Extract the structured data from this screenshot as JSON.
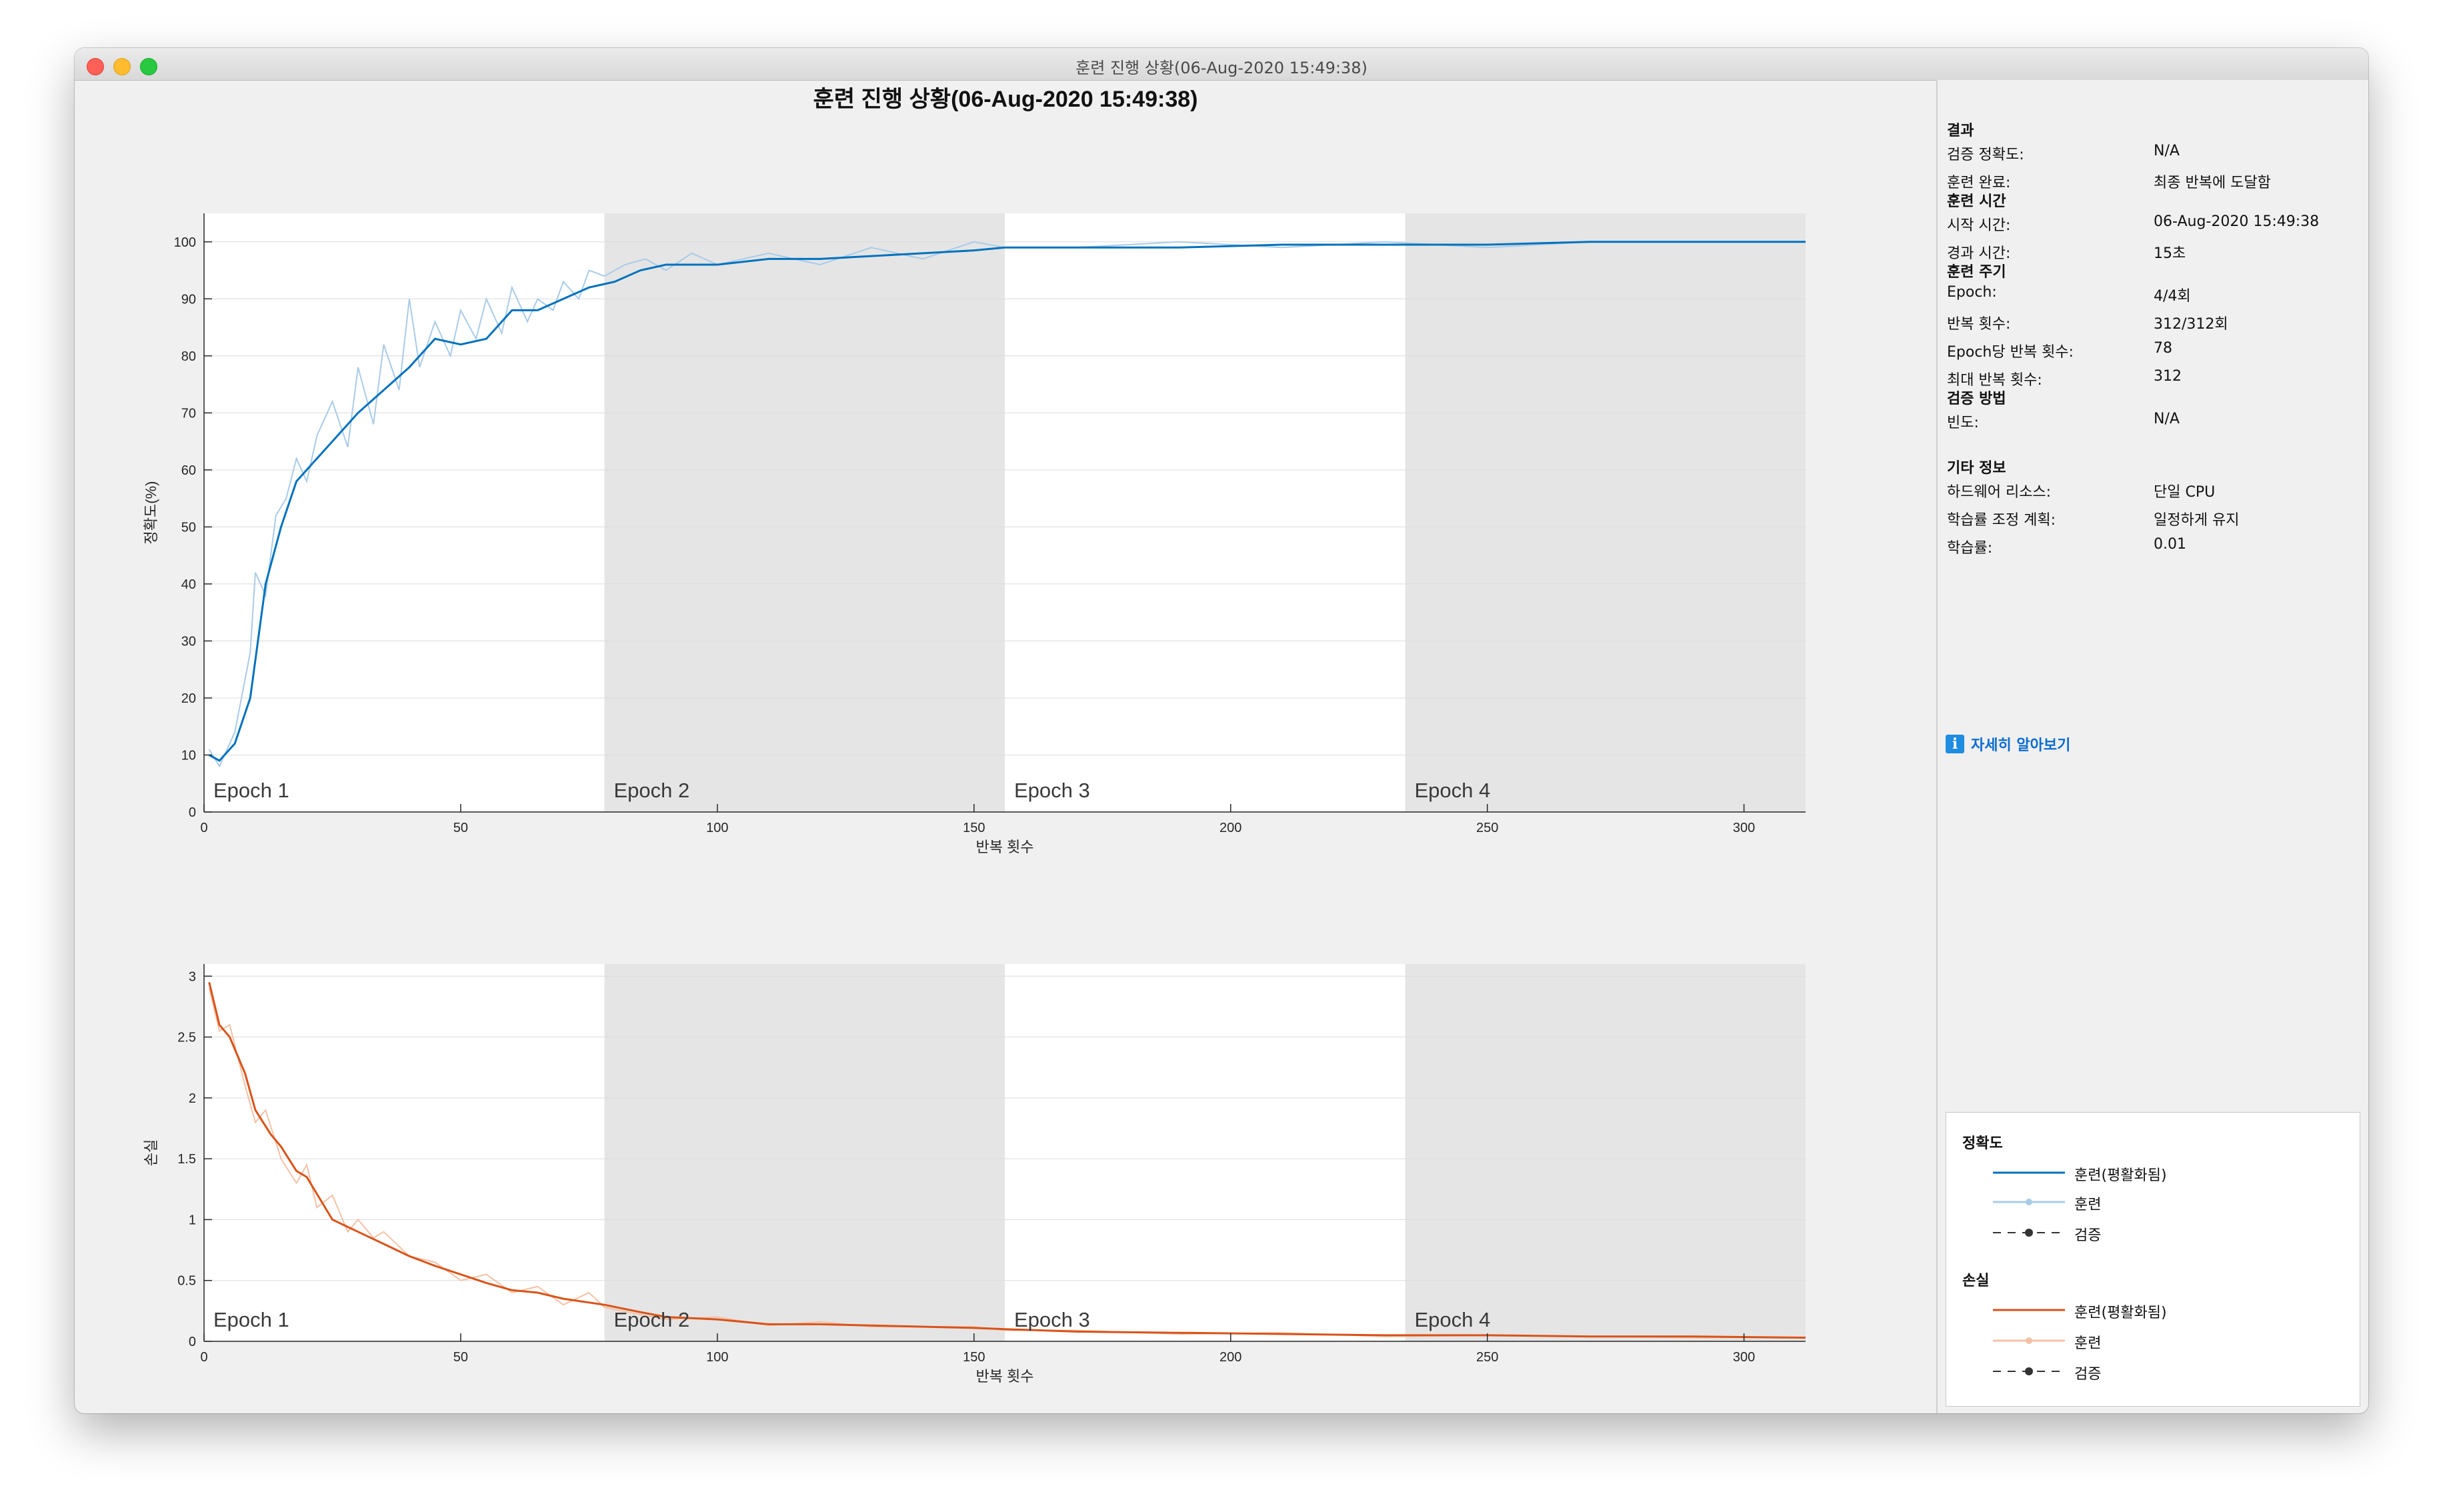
{
  "window": {
    "title": "훈련 진행 상황(06-Aug-2020 15:49:38)"
  },
  "figure": {
    "title": "훈련 진행 상황(06-Aug-2020 15:49:38)"
  },
  "colors": {
    "accuracy_smoothed": "#0072bd",
    "accuracy_raw": "#a9cbe8",
    "loss_smoothed": "#d95319",
    "loss_raw": "#f4c1a6",
    "epoch_shade": "#e5e5e5"
  },
  "epochs": [
    "Epoch 1",
    "Epoch 2",
    "Epoch 3",
    "Epoch 4"
  ],
  "chart_data": [
    {
      "type": "line",
      "ylabel": "정확도(%)",
      "xlabel": "반복 횟수",
      "xlim": [
        0,
        312
      ],
      "ylim": [
        0,
        105
      ],
      "xticks": [
        0,
        50,
        100,
        150,
        200,
        250,
        300
      ],
      "yticks": [
        0,
        10,
        20,
        30,
        40,
        50,
        60,
        70,
        80,
        90,
        100
      ],
      "epoch_boundaries": [
        0,
        78,
        156,
        234,
        312
      ],
      "grid": true,
      "series": [
        {
          "name": "훈련(평활화됨)",
          "x": [
            1,
            3,
            6,
            9,
            12,
            15,
            18,
            21,
            25,
            30,
            35,
            40,
            45,
            50,
            55,
            60,
            65,
            70,
            75,
            80,
            85,
            90,
            100,
            110,
            120,
            130,
            140,
            150,
            156,
            170,
            190,
            210,
            230,
            250,
            270,
            290,
            312
          ],
          "y": [
            10,
            9,
            12,
            20,
            40,
            50,
            58,
            61,
            65,
            70,
            74,
            78,
            83,
            82,
            83,
            88,
            88,
            90,
            92,
            93,
            95,
            96,
            96,
            97,
            97,
            97.5,
            98,
            98.5,
            99,
            99,
            99,
            99.5,
            99.5,
            99.5,
            100,
            100,
            100
          ]
        },
        {
          "name": "훈련",
          "x": [
            1,
            3,
            6,
            9,
            10,
            12,
            14,
            16,
            18,
            20,
            22,
            25,
            28,
            30,
            33,
            35,
            38,
            40,
            42,
            45,
            48,
            50,
            53,
            55,
            58,
            60,
            63,
            65,
            68,
            70,
            73,
            75,
            78,
            82,
            86,
            90,
            95,
            100,
            110,
            120,
            130,
            140,
            150,
            156,
            170,
            190,
            210,
            230,
            250,
            270,
            290,
            312
          ],
          "y": [
            11,
            8,
            14,
            28,
            42,
            38,
            52,
            55,
            62,
            58,
            66,
            72,
            64,
            78,
            68,
            82,
            74,
            90,
            78,
            86,
            80,
            88,
            83,
            90,
            84,
            92,
            86,
            90,
            88,
            93,
            90,
            95,
            94,
            96,
            97,
            95,
            98,
            96,
            98,
            96,
            99,
            97,
            100,
            99,
            99,
            100,
            99,
            100,
            99,
            100,
            100,
            100
          ]
        },
        {
          "name": "검증",
          "x": [],
          "y": []
        }
      ]
    },
    {
      "type": "line",
      "ylabel": "손실",
      "xlabel": "반복 횟수",
      "xlim": [
        0,
        312
      ],
      "ylim": [
        0,
        3.1
      ],
      "xticks": [
        0,
        50,
        100,
        150,
        200,
        250,
        300
      ],
      "yticks": [
        0,
        0.5,
        1,
        1.5,
        2,
        2.5,
        3
      ],
      "epoch_boundaries": [
        0,
        78,
        156,
        234,
        312
      ],
      "grid": true,
      "series": [
        {
          "name": "훈련(평활화됨)",
          "x": [
            1,
            3,
            5,
            8,
            10,
            13,
            15,
            18,
            20,
            25,
            30,
            35,
            40,
            45,
            50,
            55,
            60,
            65,
            70,
            78,
            85,
            90,
            100,
            110,
            120,
            130,
            150,
            156,
            170,
            190,
            210,
            230,
            250,
            270,
            290,
            312
          ],
          "y": [
            2.95,
            2.6,
            2.5,
            2.2,
            1.9,
            1.7,
            1.6,
            1.4,
            1.35,
            1.0,
            0.9,
            0.8,
            0.7,
            0.62,
            0.55,
            0.48,
            0.42,
            0.4,
            0.35,
            0.3,
            0.24,
            0.2,
            0.18,
            0.14,
            0.14,
            0.13,
            0.11,
            0.1,
            0.08,
            0.07,
            0.06,
            0.05,
            0.05,
            0.04,
            0.04,
            0.03
          ]
        },
        {
          "name": "훈련",
          "x": [
            1,
            3,
            5,
            8,
            10,
            12,
            15,
            18,
            20,
            22,
            25,
            28,
            30,
            33,
            35,
            40,
            45,
            50,
            55,
            60,
            65,
            70,
            75,
            78,
            85,
            90,
            100,
            110,
            120,
            130,
            150,
            156,
            170,
            190,
            210,
            230,
            250,
            270,
            290,
            312
          ],
          "y": [
            2.9,
            2.55,
            2.6,
            2.1,
            1.8,
            1.9,
            1.5,
            1.3,
            1.45,
            1.1,
            1.2,
            0.9,
            1.0,
            0.85,
            0.9,
            0.7,
            0.65,
            0.5,
            0.55,
            0.4,
            0.45,
            0.3,
            0.4,
            0.28,
            0.22,
            0.18,
            0.2,
            0.13,
            0.16,
            0.12,
            0.12,
            0.09,
            0.09,
            0.06,
            0.07,
            0.04,
            0.05,
            0.04,
            0.03,
            0.03
          ]
        },
        {
          "name": "검증",
          "x": [],
          "y": []
        }
      ]
    }
  ],
  "panel": {
    "sections": [
      {
        "title": "결과",
        "rows": [
          {
            "label": "검증 정확도:",
            "value": "N/A"
          },
          {
            "label": "훈련 완료:",
            "value": "최종 반복에 도달함"
          }
        ]
      },
      {
        "title": "훈련 시간",
        "rows": [
          {
            "label": "시작 시간:",
            "value": "06-Aug-2020 15:49:38"
          },
          {
            "label": "경과 시간:",
            "value": "15초"
          }
        ]
      },
      {
        "title": "훈련 주기",
        "rows": [
          {
            "label": "Epoch:",
            "value": "4/4회"
          },
          {
            "label": "반복 횟수:",
            "value": "312/312회"
          },
          {
            "label": "Epoch당 반복 횟수:",
            "value": "78"
          },
          {
            "label": "최대 반복 횟수:",
            "value": "312"
          }
        ]
      },
      {
        "title": "검증 방법",
        "rows": [
          {
            "label": "빈도:",
            "value": "N/A"
          }
        ]
      },
      {
        "title": "기타 정보",
        "rows": [
          {
            "label": "하드웨어 리소스:",
            "value": "단일 CPU"
          },
          {
            "label": "학습률 조정 계획:",
            "value": "일정하게 유지"
          },
          {
            "label": "학습률:",
            "value": "0.01"
          }
        ]
      }
    ],
    "learn_more": "자세히 알아보기",
    "info_icon": "info-icon"
  },
  "legend": {
    "accuracy_title": "정확도",
    "loss_title": "손실",
    "smoothed": "훈련(평활화됨)",
    "train": "훈련",
    "validation": "검증"
  }
}
